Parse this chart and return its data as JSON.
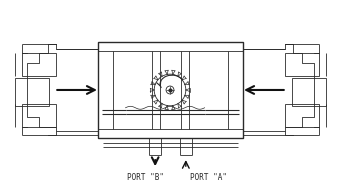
{
  "bg_color": "#ffffff",
  "line_color": "#2a2a2a",
  "lw_main": 1.0,
  "lw_thin": 0.6,
  "port_b_label": "PORT \"B\"",
  "port_a_label": "PORT \"A\"",
  "figsize": [
    3.41,
    1.84
  ],
  "dpi": 100
}
